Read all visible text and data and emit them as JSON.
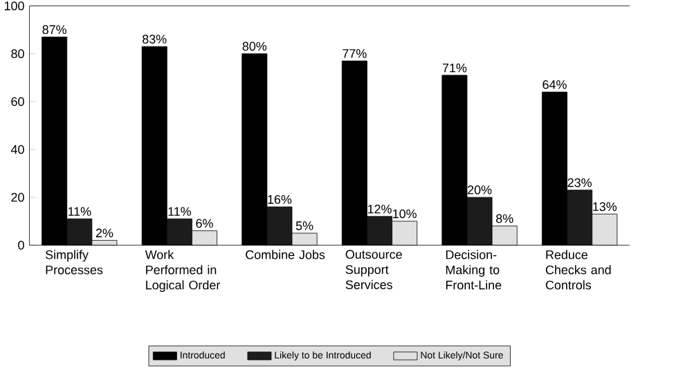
{
  "chart_data": {
    "type": "bar",
    "categories": [
      "Simplify Processes",
      "Work Performed in Logical Order",
      "Combine Jobs",
      "Outsource Support Services",
      "Decision-Making to Front-Line",
      "Reduce Checks and Controls"
    ],
    "series": [
      {
        "name": "Introduced",
        "color": "#000000",
        "values": [
          87,
          83,
          80,
          77,
          71,
          64
        ],
        "value_labels": [
          "87%",
          "83%",
          "80%",
          "77%",
          "71%",
          "64%"
        ]
      },
      {
        "name": "Likely to be Introduced",
        "color": "#1c1c1c",
        "values": [
          11,
          11,
          16,
          12,
          20,
          23
        ],
        "value_labels": [
          "11%",
          "11%",
          "16%",
          "12%",
          "20%",
          "23%"
        ]
      },
      {
        "name": "Not Likely/Not Sure",
        "color": "#e0e0e0",
        "values": [
          2,
          6,
          5,
          10,
          8,
          13
        ],
        "value_labels": [
          "2%",
          "6%",
          "5%",
          "10%",
          "8%",
          "13%"
        ]
      }
    ],
    "ylim": [
      0,
      100
    ],
    "yticks": [
      0,
      20,
      40,
      60,
      80,
      100
    ],
    "grid": false,
    "legend": "bottom"
  }
}
